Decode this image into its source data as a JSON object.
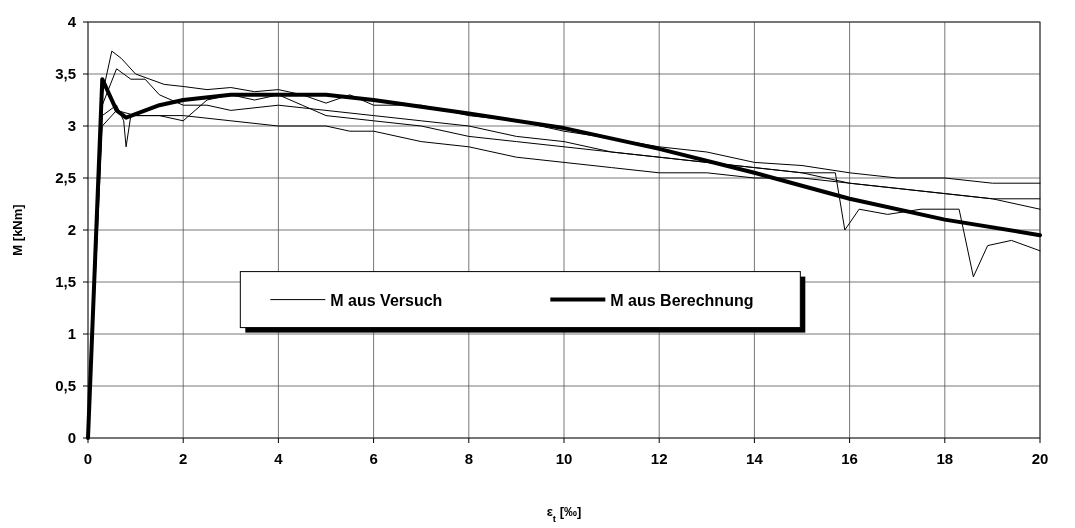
{
  "chart_data": {
    "type": "line",
    "xlabel": "ε$_{t}$ [‰]",
    "ylabel": "M [kNm]",
    "xlim": [
      0,
      20
    ],
    "xticks": [
      0,
      2,
      4,
      6,
      8,
      10,
      12,
      14,
      16,
      18,
      20
    ],
    "ylim": [
      0,
      4
    ],
    "yticks": [
      0,
      {
        "value": 0.5,
        "label": "0,5"
      },
      1,
      {
        "value": 1.5,
        "label": "1,5"
      },
      2,
      {
        "value": 2.5,
        "label": "2,5"
      },
      3,
      {
        "value": 3.5,
        "label": "3,5"
      },
      4
    ],
    "grid": true,
    "legend": "center",
    "line_style": "solid",
    "series": [
      {
        "name": "M aus Versuch",
        "color": "#000000",
        "x": [
          0,
          0.3,
          0.5,
          0.7,
          1.0,
          1.3,
          1.6,
          2.0,
          2.5,
          3.0,
          3.5,
          4.0,
          4.5,
          5.0,
          5.5,
          6.0,
          7.0,
          8.0,
          9.0,
          10.0,
          11.0,
          12.0,
          13.0,
          14.0,
          15.0,
          16.0,
          17.0,
          18.0,
          19.0,
          20.0
        ],
        "values": [
          0,
          3.3,
          3.72,
          3.65,
          3.5,
          3.45,
          3.4,
          3.38,
          3.35,
          3.37,
          3.33,
          3.35,
          3.3,
          3.22,
          3.3,
          3.2,
          3.2,
          3.1,
          3.05,
          2.95,
          2.88,
          2.8,
          2.75,
          2.65,
          2.62,
          2.55,
          2.5,
          2.5,
          2.45,
          2.45
        ]
      },
      {
        "color": "#000000",
        "x": [
          0,
          0.3,
          0.6,
          0.9,
          1.2,
          1.5,
          2.0,
          2.5,
          3.0,
          4.0,
          5.0,
          6.0,
          7.0,
          8.0,
          9.0,
          10.0,
          11.0,
          12.0,
          13.0,
          14.0,
          15.0,
          15.7,
          15.9,
          16.2,
          16.8,
          17.5,
          18.3,
          18.6,
          18.9,
          19.4,
          20.0
        ],
        "values": [
          0,
          3.2,
          3.55,
          3.45,
          3.45,
          3.3,
          3.2,
          3.2,
          3.15,
          3.2,
          3.15,
          3.1,
          3.05,
          3.0,
          2.9,
          2.85,
          2.75,
          2.7,
          2.65,
          2.6,
          2.55,
          2.55,
          2.0,
          2.2,
          2.15,
          2.2,
          2.2,
          1.55,
          1.85,
          1.9,
          1.8
        ]
      },
      {
        "color": "#000000",
        "x": [
          0,
          0.3,
          0.6,
          0.75,
          0.8,
          0.9,
          1.2,
          2.0,
          3.0,
          4.0,
          5.0,
          5.5,
          6.0,
          7.0,
          8.0,
          9.0,
          10.0,
          11.0,
          12.0,
          13.0,
          14.0,
          15.0,
          16.0,
          17.0,
          18.0,
          19.0,
          20.0
        ],
        "values": [
          0,
          3.1,
          3.2,
          3.05,
          2.8,
          3.1,
          3.1,
          3.1,
          3.05,
          3.0,
          3.0,
          2.95,
          2.95,
          2.85,
          2.8,
          2.7,
          2.65,
          2.6,
          2.55,
          2.55,
          2.5,
          2.5,
          2.45,
          2.4,
          2.35,
          2.3,
          2.3
        ]
      },
      {
        "color": "#000000",
        "x": [
          0,
          0.3,
          0.6,
          1.0,
          1.5,
          2.0,
          2.5,
          3.0,
          3.5,
          4.0,
          4.5,
          5.0,
          6.0,
          7.0,
          8.0,
          9.0,
          10.0,
          11.0,
          12.0,
          13.0,
          14.0,
          15.0,
          16.0,
          17.0,
          18.0,
          19.0,
          20.0
        ],
        "values": [
          0,
          3.0,
          3.15,
          3.1,
          3.1,
          3.05,
          3.25,
          3.3,
          3.25,
          3.3,
          3.2,
          3.1,
          3.05,
          3.0,
          2.9,
          2.85,
          2.8,
          2.75,
          2.7,
          2.65,
          2.6,
          2.55,
          2.45,
          2.4,
          2.35,
          2.3,
          2.2
        ]
      },
      {
        "name": "M aus Berechnung",
        "color": "#000000",
        "x": [
          0,
          0.3,
          0.6,
          0.8,
          1.5,
          2.0,
          3.0,
          4.0,
          5.0,
          6.0,
          8.0,
          10.0,
          12.0,
          14.0,
          16.0,
          18.0,
          20.0
        ],
        "values": [
          0,
          3.45,
          3.15,
          3.08,
          3.2,
          3.25,
          3.3,
          3.3,
          3.3,
          3.25,
          3.12,
          2.98,
          2.78,
          2.55,
          2.3,
          2.1,
          1.95
        ]
      }
    ]
  }
}
